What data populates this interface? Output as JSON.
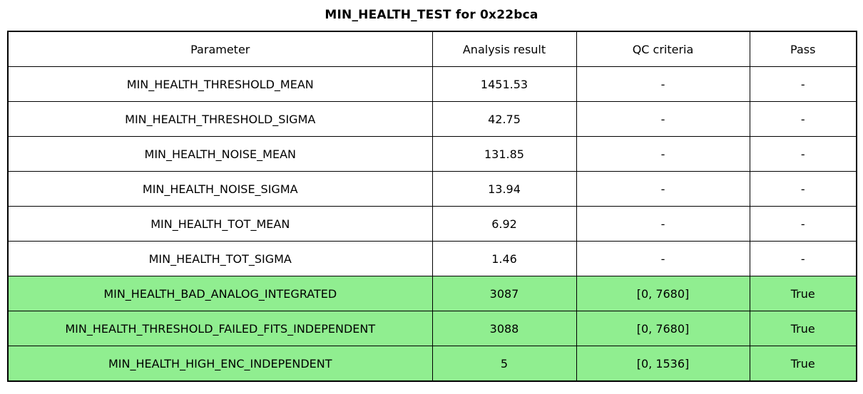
{
  "title": "MIN_HEALTH_TEST for 0x22bca",
  "colors": {
    "pass_green": "#90EE90",
    "border": "#000000",
    "background": "#FFFFFF"
  },
  "table": {
    "columns": [
      "Parameter",
      "Analysis result",
      "QC criteria",
      "Pass"
    ],
    "rows": [
      {
        "cells": [
          "MIN_HEALTH_THRESHOLD_MEAN",
          "1451.53",
          "-",
          "-"
        ],
        "highlight": false
      },
      {
        "cells": [
          "MIN_HEALTH_THRESHOLD_SIGMA",
          "42.75",
          "-",
          "-"
        ],
        "highlight": false
      },
      {
        "cells": [
          "MIN_HEALTH_NOISE_MEAN",
          "131.85",
          "-",
          "-"
        ],
        "highlight": false
      },
      {
        "cells": [
          "MIN_HEALTH_NOISE_SIGMA",
          "13.94",
          "-",
          "-"
        ],
        "highlight": false
      },
      {
        "cells": [
          "MIN_HEALTH_TOT_MEAN",
          "6.92",
          "-",
          "-"
        ],
        "highlight": false
      },
      {
        "cells": [
          "MIN_HEALTH_TOT_SIGMA",
          "1.46",
          "-",
          "-"
        ],
        "highlight": false
      },
      {
        "cells": [
          "MIN_HEALTH_BAD_ANALOG_INTEGRATED",
          "3087",
          "[0, 7680]",
          "True"
        ],
        "highlight": true
      },
      {
        "cells": [
          "MIN_HEALTH_THRESHOLD_FAILED_FITS_INDEPENDENT",
          "3088",
          "[0, 7680]",
          "True"
        ],
        "highlight": true
      },
      {
        "cells": [
          "MIN_HEALTH_HIGH_ENC_INDEPENDENT",
          "5",
          "[0, 1536]",
          "True"
        ],
        "highlight": true
      }
    ]
  },
  "chart_data": {
    "type": "table",
    "title": "MIN_HEALTH_TEST for 0x22bca",
    "columns": [
      "Parameter",
      "Analysis result",
      "QC criteria",
      "Pass"
    ],
    "rows": [
      [
        "MIN_HEALTH_THRESHOLD_MEAN",
        1451.53,
        "-",
        "-"
      ],
      [
        "MIN_HEALTH_THRESHOLD_SIGMA",
        42.75,
        "-",
        "-"
      ],
      [
        "MIN_HEALTH_NOISE_MEAN",
        131.85,
        "-",
        "-"
      ],
      [
        "MIN_HEALTH_NOISE_SIGMA",
        13.94,
        "-",
        "-"
      ],
      [
        "MIN_HEALTH_TOT_MEAN",
        6.92,
        "-",
        "-"
      ],
      [
        "MIN_HEALTH_TOT_SIGMA",
        1.46,
        "-",
        "-"
      ],
      [
        "MIN_HEALTH_BAD_ANALOG_INTEGRATED",
        3087,
        "[0, 7680]",
        true
      ],
      [
        "MIN_HEALTH_THRESHOLD_FAILED_FITS_INDEPENDENT",
        3088,
        "[0, 7680]",
        true
      ],
      [
        "MIN_HEALTH_HIGH_ENC_INDEPENDENT",
        5,
        "[0, 1536]",
        true
      ]
    ],
    "legend": "rows with passing QC criteria are filled light green",
    "grid": true
  }
}
